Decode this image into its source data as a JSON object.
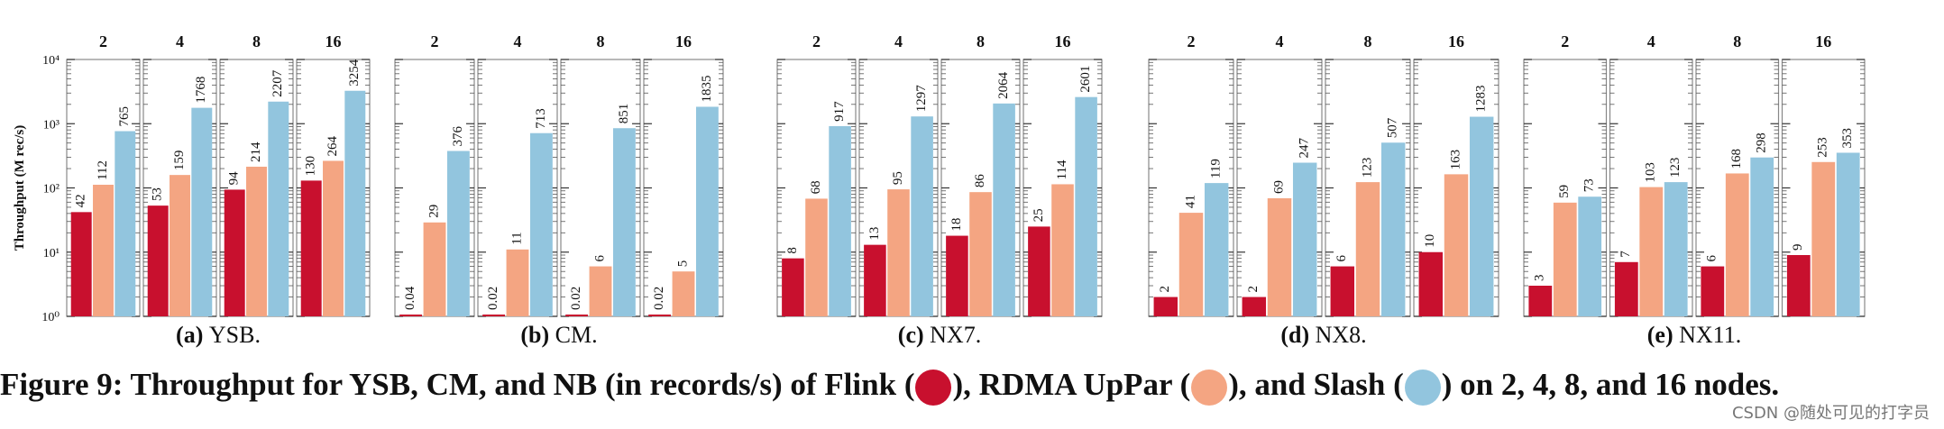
{
  "chart_data": [
    {
      "type": "bar",
      "label": "(a)",
      "title": "YSB.",
      "ylabel": "Throughput (M rec/s)",
      "log_scale": true,
      "categories": [
        "2",
        "4",
        "8",
        "16"
      ],
      "ylim": [
        1,
        10000
      ],
      "yticks": [
        {
          "value": 1,
          "label": "10⁰"
        },
        {
          "value": 10,
          "label": "10¹"
        },
        {
          "value": 100,
          "label": "10²"
        },
        {
          "value": 1000,
          "label": "10³"
        },
        {
          "value": 10000,
          "label": "10⁴"
        }
      ],
      "series": [
        {
          "color": "#c8102e",
          "values": [
            42,
            53,
            94,
            130
          ]
        },
        {
          "color": "#f4a582",
          "values": [
            112,
            159,
            214,
            264
          ]
        },
        {
          "color": "#92c5de",
          "values": [
            765,
            1768,
            2207,
            3254
          ]
        }
      ]
    },
    {
      "type": "bar",
      "label": "(b)",
      "title": "CM.",
      "log_scale": true,
      "categories": [
        "2",
        "4",
        "8",
        "16"
      ],
      "ylim": [
        1,
        10000
      ],
      "yticks": [
        1,
        10,
        100,
        1000,
        10000
      ],
      "series": [
        {
          "color": "#c8102e",
          "values": [
            0.04,
            0.02,
            0.02,
            0.02
          ]
        },
        {
          "color": "#f4a582",
          "values": [
            29,
            11,
            6,
            5
          ]
        },
        {
          "color": "#92c5de",
          "values": [
            376,
            713,
            851,
            1835
          ]
        }
      ]
    },
    {
      "type": "bar",
      "label": "(c)",
      "title": "NX7.",
      "log_scale": true,
      "categories": [
        "2",
        "4",
        "8",
        "16"
      ],
      "ylim": [
        1,
        10000
      ],
      "yticks": [
        1,
        10,
        100,
        1000,
        10000
      ],
      "series": [
        {
          "color": "#c8102e",
          "values": [
            8,
            13,
            18,
            25
          ]
        },
        {
          "color": "#f4a582",
          "values": [
            68,
            95,
            86,
            114
          ]
        },
        {
          "color": "#92c5de",
          "values": [
            917,
            1297,
            2064,
            2601
          ]
        }
      ]
    },
    {
      "type": "bar",
      "label": "(d)",
      "title": "NX8.",
      "log_scale": true,
      "categories": [
        "2",
        "4",
        "8",
        "16"
      ],
      "ylim": [
        1,
        10000
      ],
      "yticks": [
        1,
        10,
        100,
        1000,
        10000
      ],
      "series": [
        {
          "color": "#c8102e",
          "values": [
            2,
            2,
            6,
            10
          ]
        },
        {
          "color": "#f4a582",
          "values": [
            41,
            69,
            123,
            163
          ]
        },
        {
          "color": "#92c5de",
          "values": [
            119,
            247,
            507,
            1283
          ]
        }
      ]
    },
    {
      "type": "bar",
      "label": "(e)",
      "title": "NX11.",
      "log_scale": true,
      "categories": [
        "2",
        "4",
        "8",
        "16"
      ],
      "ylim": [
        1,
        10000
      ],
      "yticks": [
        1,
        10,
        100,
        1000,
        10000
      ],
      "series": [
        {
          "color": "#c8102e",
          "values": [
            3,
            7,
            6,
            9
          ]
        },
        {
          "color": "#f4a582",
          "values": [
            59,
            103,
            168,
            253
          ]
        },
        {
          "color": "#92c5de",
          "values": [
            73,
            123,
            298,
            353
          ]
        }
      ]
    }
  ],
  "caption": [
    "Figure 9: Throughput for YSB, CM, and NB (in records/s) of Flink (",
    {
      "color": "#c8102e"
    },
    "), RDMA UpPar (",
    {
      "color": "#f4a582"
    },
    "), and Slash (",
    {
      "color": "#92c5de"
    },
    ") on 2, 4, 8, and 16 nodes."
  ],
  "watermark": "CSDN @随处可见的打字员"
}
